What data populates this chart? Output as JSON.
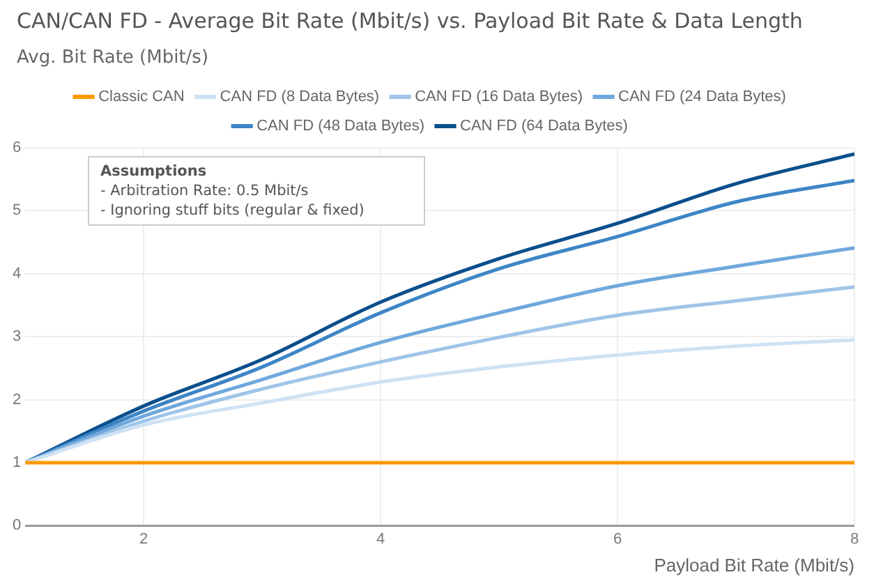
{
  "chart_data": {
    "type": "line",
    "title": "CAN/CAN FD - Average Bit Rate (Mbit/s) vs. Payload Bit Rate & Data Length",
    "ylabel": "Avg. Bit Rate (Mbit/s)",
    "xlabel": "Payload Bit Rate (Mbit/s)",
    "x": [
      1,
      2,
      3,
      4,
      5,
      6,
      7,
      8
    ],
    "series": [
      {
        "name": "Classic CAN",
        "color": "#ff9800",
        "values": [
          1,
          1,
          1,
          1,
          1,
          1,
          1,
          1
        ]
      },
      {
        "name": "CAN FD (8 Data Bytes)",
        "color": "#cfe2f3",
        "values": [
          1,
          1.6,
          1.95,
          2.28,
          2.52,
          2.71,
          2.85,
          2.95
        ]
      },
      {
        "name": "CAN FD (16 Data Bytes)",
        "color": "#9fc5e8",
        "values": [
          1,
          1.66,
          2.17,
          2.6,
          2.99,
          3.34,
          3.57,
          3.79
        ]
      },
      {
        "name": "CAN FD (24 Data Bytes)",
        "color": "#6fa8dc",
        "values": [
          1,
          1.74,
          2.32,
          2.91,
          3.38,
          3.81,
          4.12,
          4.41
        ]
      },
      {
        "name": "CAN FD (48 Data Bytes)",
        "color": "#3d85c6",
        "values": [
          1,
          1.82,
          2.52,
          3.38,
          4.08,
          4.59,
          5.14,
          5.48
        ]
      },
      {
        "name": "CAN FD (64 Data Bytes)",
        "color": "#0b4f8c",
        "values": [
          1,
          1.9,
          2.64,
          3.55,
          4.24,
          4.8,
          5.43,
          5.9
        ]
      }
    ],
    "xlim": [
      1,
      8
    ],
    "xticks": [
      2,
      4,
      6,
      8
    ],
    "ylim": [
      0,
      6
    ],
    "yticks": [
      0,
      1,
      2,
      3,
      4,
      5,
      6
    ],
    "grid": true,
    "legend": "top",
    "marker": "none",
    "line_style": "solid",
    "annotations": [
      "Assumptions",
      "- Arbitration Rate: 0.5 Mbit/s",
      "- Ignoring stuff bits (regular & fixed)"
    ]
  }
}
